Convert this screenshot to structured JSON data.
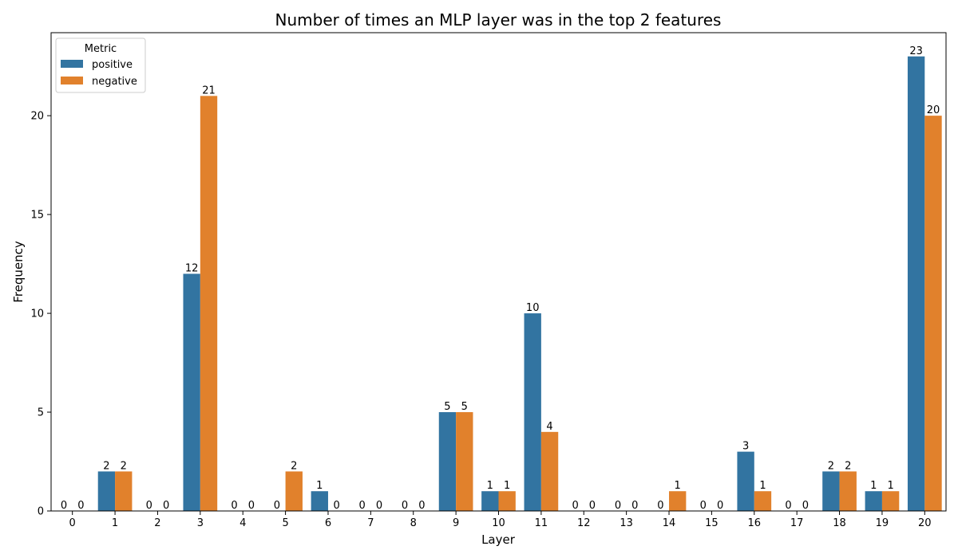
{
  "chart_data": {
    "type": "bar",
    "title": "Number of times an MLP layer was in the top 2 features",
    "xlabel": "Layer",
    "ylabel": "Frequency",
    "categories": [
      "0",
      "1",
      "2",
      "3",
      "4",
      "5",
      "6",
      "7",
      "8",
      "9",
      "10",
      "11",
      "12",
      "13",
      "14",
      "15",
      "16",
      "17",
      "18",
      "19",
      "20"
    ],
    "series": [
      {
        "name": "positive",
        "color": "#3274a1",
        "values": [
          0,
          2,
          0,
          12,
          0,
          0,
          1,
          0,
          0,
          5,
          1,
          10,
          0,
          0,
          0,
          0,
          3,
          0,
          2,
          1,
          23
        ]
      },
      {
        "name": "negative",
        "color": "#e1812c",
        "values": [
          0,
          2,
          0,
          21,
          0,
          2,
          0,
          0,
          0,
          5,
          1,
          4,
          0,
          0,
          1,
          0,
          1,
          0,
          2,
          1,
          20
        ]
      }
    ],
    "ylim": [
      0,
      24.2
    ],
    "yticks": [
      0,
      5,
      10,
      15,
      20
    ],
    "legend": {
      "title": "Metric",
      "placement": "top-left"
    },
    "grid": false
  }
}
